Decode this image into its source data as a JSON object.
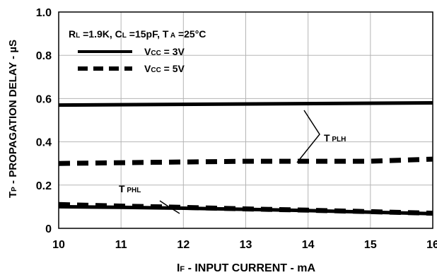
{
  "chart_data": {
    "type": "line",
    "xlabel": {
      "main": "I",
      "sub": "F",
      "rest": " - INPUT CURRENT - mA"
    },
    "ylabel": {
      "main": "T",
      "sub": "P",
      "rest": " - PROPAGATION DELAY - µS"
    },
    "xlim": [
      10,
      16
    ],
    "ylim": [
      0,
      1.0
    ],
    "x_ticks": [
      "10",
      "11",
      "12",
      "13",
      "14",
      "15",
      "16"
    ],
    "y_ticks": [
      "0",
      "0.2",
      "0.4",
      "0.6",
      "0.8",
      "1.0"
    ],
    "grid": true,
    "conditions": {
      "r_main": "R",
      "r_sub": "L",
      "r_val": " =1.9K, ",
      "c_main": "C",
      "c_sub": "L",
      "c_val": " =15pF, ",
      "t_main": "T",
      "t_sub": " A",
      "t_val": " =25°C"
    },
    "legend": [
      {
        "main": "V",
        "sub": "CC",
        "rest": " = 3V",
        "style": "solid"
      },
      {
        "main": "V",
        "sub": "CC",
        "rest": " = 5V",
        "style": "dashed"
      }
    ],
    "annotations": {
      "tplh": {
        "main": "T",
        "sub": " PLH"
      },
      "tphl": {
        "main": "T",
        "sub": " PHL"
      }
    },
    "series": [
      {
        "curve": "TPLH",
        "vcc": "3V",
        "style": "solid",
        "x": [
          10,
          16
        ],
        "y": [
          0.57,
          0.58
        ]
      },
      {
        "curve": "TPLH",
        "vcc": "5V",
        "style": "dashed",
        "x": [
          10,
          13,
          14,
          15,
          16
        ],
        "y": [
          0.3,
          0.31,
          0.31,
          0.31,
          0.32
        ]
      },
      {
        "curve": "TPHL",
        "vcc": "3V",
        "style": "solid",
        "x": [
          10,
          11,
          12,
          13,
          14,
          15,
          16
        ],
        "y": [
          0.1,
          0.097,
          0.093,
          0.088,
          0.082,
          0.075,
          0.068
        ]
      },
      {
        "curve": "TPHL",
        "vcc": "5V",
        "style": "dashed",
        "x": [
          10,
          11,
          12,
          13,
          14,
          15,
          16
        ],
        "y": [
          0.11,
          0.103,
          0.097,
          0.09,
          0.084,
          0.077,
          0.07
        ]
      }
    ]
  }
}
